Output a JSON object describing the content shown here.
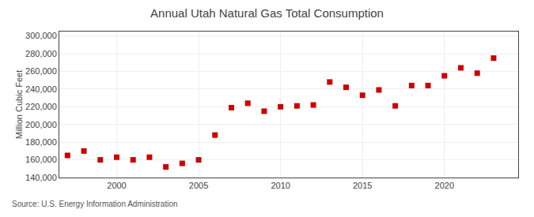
{
  "chart_data": {
    "type": "scatter",
    "title": "Annual Utah Natural Gas Total Consumption",
    "ylabel": "Million Cubic Feet",
    "annotations": [
      "Source: U.S. Energy Information Administration"
    ],
    "x": [
      1997,
      1998,
      1999,
      2000,
      2001,
      2002,
      2003,
      2004,
      2005,
      2006,
      2007,
      2008,
      2009,
      2010,
      2011,
      2012,
      2013,
      2014,
      2015,
      2016,
      2017,
      2018,
      2019,
      2020,
      2021,
      2022,
      2023
    ],
    "values": [
      165000,
      170000,
      160000,
      163000,
      160000,
      163000,
      152000,
      156000,
      160000,
      188000,
      219000,
      224000,
      215000,
      220000,
      221000,
      222000,
      248000,
      242000,
      233000,
      239000,
      221000,
      244000,
      244000,
      255000,
      264000,
      258000,
      275000
    ],
    "color": "#cc0000",
    "marker": "square",
    "xlim": [
      1996.5,
      2024.5
    ],
    "ylim": [
      140000,
      305000
    ],
    "xticks": [
      2000,
      2005,
      2010,
      2015,
      2020
    ],
    "yticks": [
      {
        "value": 140000,
        "label": "140,000"
      },
      {
        "value": 160000,
        "label": "160,000"
      },
      {
        "value": 180000,
        "label": "180,000"
      },
      {
        "value": 200000,
        "label": "200,000"
      },
      {
        "value": 220000,
        "label": "220,000"
      },
      {
        "value": 240000,
        "label": "240,000"
      },
      {
        "value": 260000,
        "label": "260,000"
      },
      {
        "value": 280000,
        "label": "280,000"
      },
      {
        "value": 300000,
        "label": "300,000"
      }
    ],
    "grid": true
  }
}
